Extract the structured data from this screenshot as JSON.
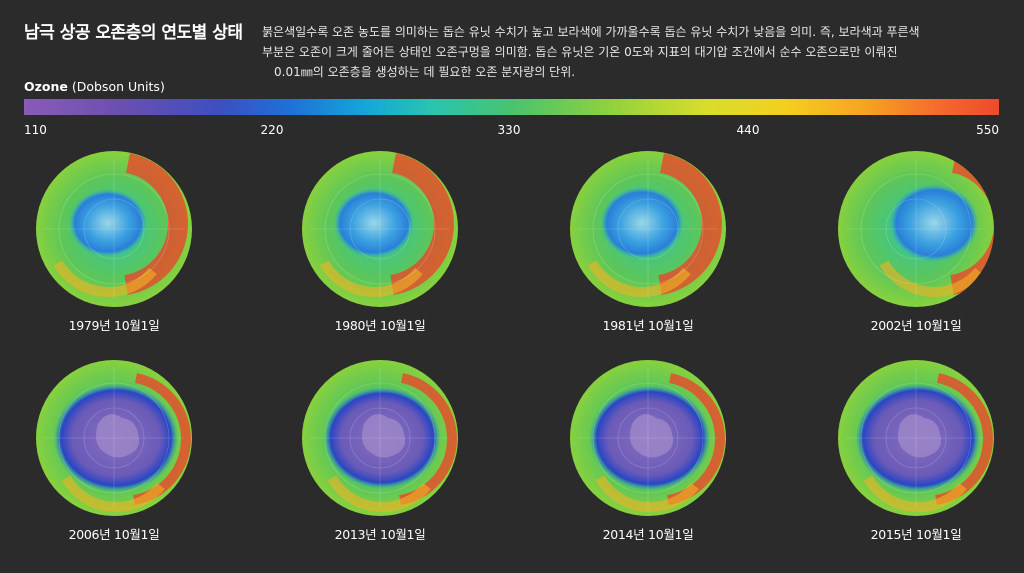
{
  "title": "남극 상공 오존층의 연도별 상태",
  "description": [
    "붉은색일수록 오존 농도를 의미하는 돕슨 유닛 수치가 높고 보라색에 가까울수록 돕슨 유닛 수치가 낮음을 의미. 즉, 보라색과 푸른색",
    "부분은 오존이 크게 줄어든 상태인 오존구멍을 의미함. 돕슨 유닛은 기온 0도와 지표의 대기압 조건에서 순수 오존으로만 이뤄진",
    "0.01㎜의 오존층을 생성하는 데 필요한 오존 분자량의 단위."
  ],
  "colorbar": {
    "label_bold": "Ozone",
    "label_rest": " (Dobson Units)",
    "ticks": [
      "110",
      "220",
      "330",
      "440",
      "550"
    ]
  },
  "globes": [
    {
      "date": "1979년 10월1일",
      "hole": 0.35
    },
    {
      "date": "1980년 10월1일",
      "hole": 0.38
    },
    {
      "date": "1981년 10월1일",
      "hole": 0.42
    },
    {
      "date": "2002년 10월1일",
      "hole": 0.5
    },
    {
      "date": "2006년 10월1일",
      "hole": 0.95
    },
    {
      "date": "2013년 10월1일",
      "hole": 0.85
    },
    {
      "date": "2014년 10월1일",
      "hole": 0.9
    },
    {
      "date": "2015년 10월1일",
      "hole": 0.95
    }
  ]
}
